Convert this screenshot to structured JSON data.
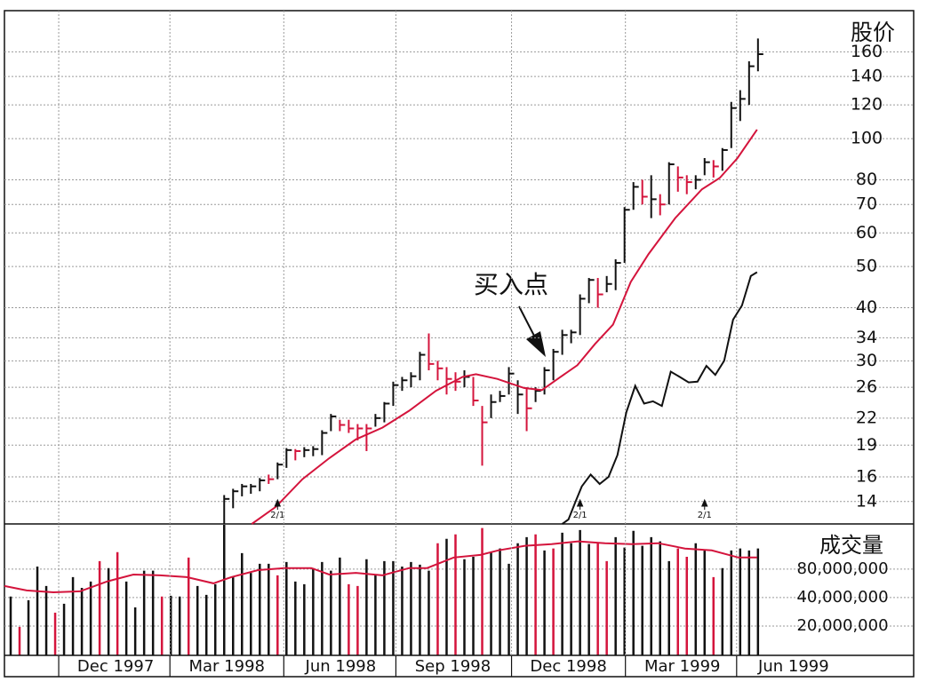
{
  "chart_data": [
    {
      "type": "hlc",
      "ylabel": "股价",
      "annotation": "买入点",
      "log": true,
      "grid": true,
      "ylim": [
        12.4,
        200
      ],
      "xlim": [
        0.3,
        102.5
      ],
      "yticks": [
        14,
        16,
        19,
        22,
        26,
        30,
        34,
        40,
        50,
        60,
        70,
        80,
        100,
        120,
        140,
        160
      ],
      "bars": {
        "x": [
          25,
          26,
          27,
          28,
          29,
          30,
          31,
          32,
          33,
          34,
          35,
          36,
          37,
          38,
          39,
          40,
          41,
          42,
          43,
          44,
          45,
          46,
          47,
          48,
          49,
          50,
          51,
          52,
          53,
          54,
          55,
          56,
          57,
          58,
          59,
          60,
          61,
          62,
          63,
          64,
          65,
          66,
          67,
          68,
          69,
          70,
          71,
          72,
          73,
          74,
          75,
          76,
          77,
          78,
          79,
          80,
          81,
          82,
          83,
          84,
          85
        ],
        "high": [
          14.5,
          15,
          15.4,
          15.4,
          15.9,
          16.2,
          17.3,
          18.7,
          18.6,
          18.8,
          18.9,
          20.6,
          22.5,
          21.8,
          21.8,
          21.3,
          21.3,
          22.5,
          24,
          26.8,
          27.5,
          28.2,
          31.5,
          34.8,
          30,
          29,
          28.2,
          28.5,
          27.5,
          23.5,
          25,
          25.5,
          29,
          27,
          26,
          26,
          29,
          32,
          35.5,
          35.5,
          43,
          47,
          47,
          47.5,
          52,
          69,
          79,
          80,
          82,
          74,
          88,
          86,
          82,
          82,
          90,
          89,
          95,
          122,
          130,
          152,
          172
        ],
        "low": [
          12.4,
          13.5,
          14.4,
          14.6,
          14.8,
          15.4,
          15.8,
          16.8,
          17.5,
          17.8,
          17.9,
          18,
          20.5,
          20.5,
          20.3,
          19.5,
          18.4,
          21,
          21.5,
          23.5,
          25.5,
          26,
          27,
          28.5,
          27,
          25,
          25.5,
          26,
          23.5,
          17,
          22,
          24,
          25,
          22.5,
          20.5,
          24,
          25,
          27,
          31,
          33,
          34.5,
          41,
          40,
          43.5,
          44,
          51,
          68,
          70,
          65,
          66,
          70,
          75,
          74,
          76,
          82,
          81,
          84,
          95,
          110,
          120,
          144
        ],
        "close": [
          14.2,
          14.8,
          15.2,
          15.2,
          15.7,
          15.8,
          17.1,
          18.5,
          18.4,
          18.5,
          18.6,
          20.3,
          22.2,
          21.2,
          20.8,
          20.8,
          20.8,
          22,
          23.8,
          26.3,
          27,
          27.6,
          31,
          29.5,
          28.8,
          27.2,
          26.8,
          27.5,
          24.2,
          21.5,
          24,
          24.8,
          28,
          25,
          23.2,
          25.5,
          28.5,
          31.5,
          34.5,
          35,
          42,
          46.5,
          43,
          45.5,
          51,
          68,
          77,
          73,
          72,
          70,
          87,
          81,
          79,
          80,
          88,
          86,
          94,
          118,
          124,
          148,
          158
        ],
        "colors": [
          "#111",
          "#111",
          "#111",
          "#111",
          "#111",
          "#d4143c",
          "#111",
          "#111",
          "#d4143c",
          "#111",
          "#111",
          "#111",
          "#111",
          "#d4143c",
          "#d4143c",
          "#d4143c",
          "#d4143c",
          "#111",
          "#111",
          "#111",
          "#111",
          "#111",
          "#111",
          "#d4143c",
          "#d4143c",
          "#d4143c",
          "#d4143c",
          "#111",
          "#d4143c",
          "#d4143c",
          "#111",
          "#111",
          "#111",
          "#111",
          "#d4143c",
          "#111",
          "#111",
          "#111",
          "#111",
          "#111",
          "#111",
          "#111",
          "#d4143c",
          "#111",
          "#111",
          "#111",
          "#111",
          "#d4143c",
          "#111",
          "#d4143c",
          "#111",
          "#d4143c",
          "#d4143c",
          "#111",
          "#111",
          "#d4143c",
          "#111",
          "#111",
          "#111",
          "#111",
          "#111"
        ]
      },
      "ma": {
        "color": "#d4143c",
        "x": [
          28.1,
          30.8,
          33.8,
          36.8,
          39.8,
          42.8,
          45.8,
          48.8,
          51.8,
          53.3,
          55.7,
          58.7,
          60.7,
          62.7,
          64.7,
          66.7,
          68.7,
          70.7,
          72.7,
          75.7,
          78.7,
          80.7,
          82.7,
          84.9
        ],
        "values": [
          12.4,
          13.6,
          15.8,
          17.7,
          19.6,
          20.9,
          22.9,
          25.5,
          27.5,
          27.9,
          27.2,
          25.9,
          25.6,
          27.4,
          29.3,
          32.9,
          36.5,
          46,
          53.5,
          65,
          76,
          80.8,
          90,
          105
        ]
      },
      "rs": {
        "color": "#111",
        "x": [
          63,
          63.7,
          64.5,
          65.2,
          66.2,
          67.2,
          68.2,
          69.2,
          70.2,
          71.2,
          72.2,
          73.2,
          74.2,
          75.2,
          76.2,
          77.2,
          78.2,
          79.2,
          80.2,
          81.2,
          82.2,
          83.2,
          84.2,
          84.9
        ],
        "values": [
          12.4,
          12.7,
          14,
          15.2,
          16.2,
          15.4,
          16,
          18,
          22.7,
          26.2,
          23.8,
          24.1,
          23.5,
          28.3,
          27.5,
          26.7,
          26.8,
          29.2,
          27.8,
          30,
          37.5,
          40.5,
          47.5,
          48.5
        ]
      },
      "splits": {
        "x": [
          31,
          65,
          79
        ],
        "labels": [
          "2/1",
          "2/1",
          "2/1"
        ]
      }
    },
    {
      "type": "bar",
      "ylabel": "成交量",
      "log": true,
      "ylim": [
        9800000,
        240000000
      ],
      "xlim": [
        0.3,
        102.5
      ],
      "yticks": [
        {
          "value": 20000000,
          "label": "20,000,000"
        },
        {
          "value": 40000000,
          "label": "40,000,000"
        },
        {
          "value": 80000000,
          "label": "80,000,000"
        }
      ],
      "xticks": [
        {
          "value": 12.8,
          "label": "Dec 1997"
        },
        {
          "value": 25.3,
          "label": "Mar 1998"
        },
        {
          "value": 38.1,
          "label": "Jun 1998"
        },
        {
          "value": 50.7,
          "label": "Sep 1998"
        },
        {
          "value": 63.7,
          "label": "Dec 1998"
        },
        {
          "value": 76.5,
          "label": "Mar 1999"
        },
        {
          "value": 89,
          "label": "Jun 1999"
        }
      ],
      "x": [
        1,
        2,
        3,
        4,
        5,
        6,
        7,
        8,
        9,
        10,
        11,
        12,
        13,
        14,
        15,
        16,
        17,
        18,
        19,
        20,
        21,
        22,
        23,
        24,
        25,
        26,
        27,
        28,
        29,
        30,
        31,
        32,
        33,
        34,
        35,
        36,
        37,
        38,
        39,
        40,
        41,
        42,
        43,
        44,
        45,
        46,
        47,
        48,
        49,
        50,
        51,
        52,
        53,
        54,
        55,
        56,
        57,
        58,
        59,
        60,
        61,
        62,
        63,
        64,
        65,
        66,
        67,
        68,
        69,
        70,
        71,
        72,
        73,
        74,
        75,
        76,
        77,
        78,
        79,
        80,
        81,
        82,
        83,
        84,
        85
      ],
      "values": [
        41000000,
        19600000,
        37500000,
        85000000,
        53000000,
        27700000,
        34400000,
        65800000,
        50700000,
        59000000,
        97000000,
        82000000,
        121000000,
        59000000,
        31500000,
        77000000,
        77000000,
        41000000,
        41800000,
        41000000,
        106000000,
        53000000,
        42700000,
        55400000,
        235000000,
        65800000,
        118000000,
        73000000,
        91000000,
        91000000,
        68700000,
        95000000,
        59000000,
        55400000,
        82000000,
        95000000,
        77000000,
        106000000,
        55400000,
        53000000,
        101600000,
        68700000,
        97000000,
        97000000,
        85000000,
        95000000,
        89000000,
        77000000,
        150000000,
        167000000,
        186000000,
        101600000,
        108000000,
        217000000,
        121000000,
        132000000,
        91000000,
        150000000,
        174000000,
        186000000,
        126000000,
        132000000,
        194000000,
        150000000,
        207000000,
        147000000,
        153000000,
        97000000,
        174000000,
        135000000,
        203000000,
        141000000,
        174000000,
        157000000,
        97000000,
        132000000,
        108000000,
        150000000,
        126000000,
        65800000,
        82000000,
        126000000,
        132000000,
        126000000,
        132000000
      ],
      "colors": [
        "#111",
        "#d4143c",
        "#111",
        "#111",
        "#111",
        "#d4143c",
        "#111",
        "#111",
        "#111",
        "#111",
        "#d4143c",
        "#111",
        "#d4143c",
        "#111",
        "#111",
        "#111",
        "#111",
        "#d4143c",
        "#111",
        "#111",
        "#d4143c",
        "#111",
        "#111",
        "#111",
        "#111",
        "#111",
        "#111",
        "#111",
        "#111",
        "#111",
        "#d4143c",
        "#111",
        "#111",
        "#111",
        "#111",
        "#111",
        "#111",
        "#111",
        "#d4143c",
        "#d4143c",
        "#111",
        "#111",
        "#111",
        "#111",
        "#111",
        "#111",
        "#111",
        "#111",
        "#d4143c",
        "#111",
        "#d4143c",
        "#111",
        "#111",
        "#d4143c",
        "#111",
        "#111",
        "#111",
        "#111",
        "#111",
        "#d4143c",
        "#111",
        "#d4143c",
        "#111",
        "#111",
        "#111",
        "#111",
        "#d4143c",
        "#d4143c",
        "#111",
        "#111",
        "#111",
        "#111",
        "#111",
        "#111",
        "#111",
        "#d4143c",
        "#d4143c",
        "#111",
        "#111",
        "#d4143c",
        "#111",
        "#111",
        "#111",
        "#111",
        "#111"
      ],
      "ma": {
        "color": "#d4143c",
        "x": [
          0.3,
          2.8,
          5.8,
          8.8,
          11.8,
          14.8,
          17.8,
          20.8,
          23.8,
          25.8,
          28.8,
          31.8,
          34.8,
          36.8,
          39.8,
          42.8,
          45.8,
          47.8,
          50.8,
          53.8,
          55.8,
          58.8,
          61.8,
          64.8,
          67.8,
          70.8,
          73.8,
          76.8,
          79.8,
          82.8,
          84.9
        ],
        "values": [
          53000000,
          47600000,
          45500000,
          46500000,
          59000000,
          70000000,
          68700000,
          65800000,
          56600000,
          65800000,
          78000000,
          82000000,
          82000000,
          70000000,
          73000000,
          68700000,
          82000000,
          82000000,
          106000000,
          113000000,
          126000000,
          141000000,
          147000000,
          157000000,
          150000000,
          147000000,
          150000000,
          132000000,
          126000000,
          106000000,
          106000000
        ]
      }
    }
  ]
}
